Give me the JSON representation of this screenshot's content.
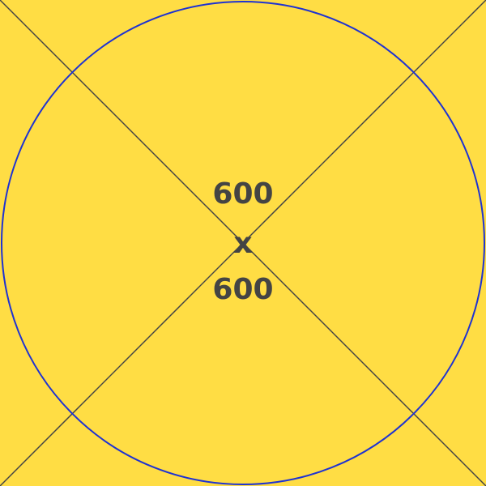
{
  "colors": {
    "background": "#FFDD44",
    "circle_stroke": "#1E32D2",
    "diagonal_stroke": "#444444",
    "text": "#444444"
  },
  "label": {
    "width": "600",
    "separator": "x",
    "height": "600"
  }
}
